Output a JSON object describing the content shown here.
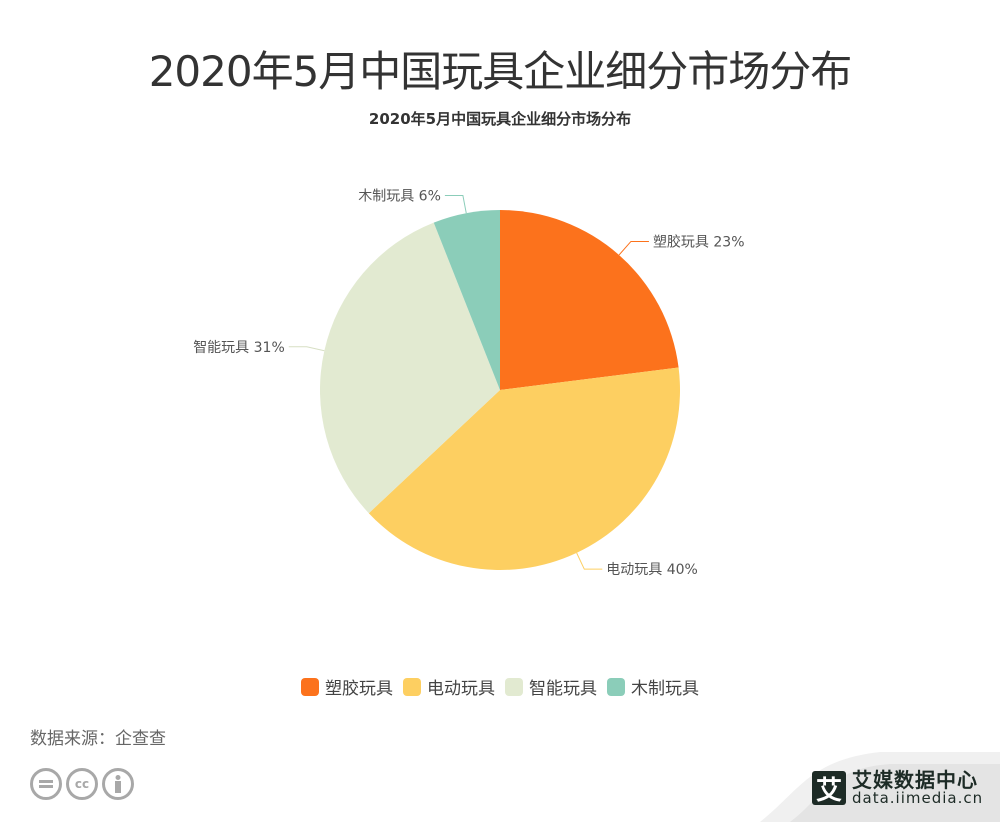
{
  "header": {
    "title": "2020年5月中国玩具企业细分市场分布",
    "subtitle": "2020年5月中国玩具企业细分市场分布"
  },
  "chart_data": {
    "type": "pie",
    "title": "2020年5月中国玩具企业细分市场分布",
    "categories": [
      "塑胶玩具",
      "电动玩具",
      "智能玩具",
      "木制玩具"
    ],
    "values": [
      23,
      40,
      31,
      6
    ],
    "unit": "%",
    "colors": [
      "#fc721c",
      "#fdcf61",
      "#e2ead1",
      "#8bcdb9"
    ],
    "labels": [
      "塑胶玩具 23%",
      "电动玩具 40%",
      "智能玩具 31%",
      "木制玩具 6%"
    ],
    "start_angle": "12 o'clock",
    "direction": "clockwise",
    "legend_position": "bottom"
  },
  "legend": {
    "items": [
      {
        "label": "塑胶玩具",
        "color": "#fc721c"
      },
      {
        "label": "电动玩具",
        "color": "#fdcf61"
      },
      {
        "label": "智能玩具",
        "color": "#e2ead1"
      },
      {
        "label": "木制玩具",
        "color": "#8bcdb9"
      }
    ]
  },
  "footer": {
    "source": "数据来源：企查查",
    "license_icons": [
      "cc-nd-icon",
      "cc-icon",
      "cc-by-icon"
    ],
    "brand_logo": "艾",
    "brand_name": "艾媒数据中心",
    "brand_url": "data.iimedia.cn"
  }
}
